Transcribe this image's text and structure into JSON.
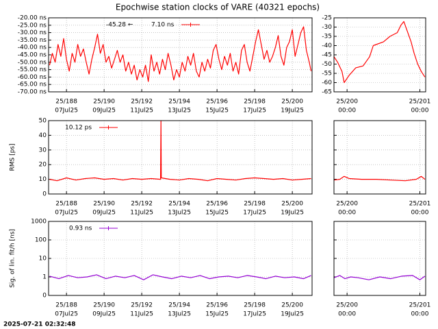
{
  "title": "Epochwise station clocks of VARE (40321 epochs)",
  "timestamp": "2025-07-21 02:32:48",
  "chart_data": [
    {
      "type": "line",
      "grid": true,
      "ytick_labels": true,
      "annotation": "-45.28 ←",
      "xlim": [
        187.05,
        201.05
      ],
      "ylim": [
        -70,
        -20
      ],
      "xticks": [
        {
          "value": 188,
          "label": "25/188"
        },
        {
          "value": 190,
          "label": "25/190"
        },
        {
          "value": 192,
          "label": "25/192"
        },
        {
          "value": 194,
          "label": "25/194"
        },
        {
          "value": 196,
          "label": "25/196"
        },
        {
          "value": 198,
          "label": "25/198"
        },
        {
          "value": 200,
          "label": "25/200"
        }
      ],
      "xtick_sublabels": [
        "07Jul25",
        "09Jul25",
        "11Jul25",
        "13Jul25",
        "15Jul25",
        "17Jul25",
        "19Jul25"
      ],
      "yticks": [
        {
          "value": -70,
          "label": "-70.00 ns"
        },
        {
          "value": -65,
          "label": "-65.00 ns"
        },
        {
          "value": -60,
          "label": "-60.00 ns"
        },
        {
          "value": -55,
          "label": "-55.00 ns"
        },
        {
          "value": -50,
          "label": "-50.00 ns"
        },
        {
          "value": -45,
          "label": "-45.00 ns"
        },
        {
          "value": -40,
          "label": "-40.00 ns"
        },
        {
          "value": -35,
          "label": "-35.00 ns"
        },
        {
          "value": -30,
          "label": "-30.00 ns"
        },
        {
          "value": -25,
          "label": "-25.00 ns"
        },
        {
          "value": -20,
          "label": "-20.00 ns"
        }
      ],
      "series": [
        {
          "name": "7.10 ns",
          "color": "#ff0000",
          "x": [
            187.1,
            187.25,
            187.4,
            187.55,
            187.7,
            187.85,
            188.0,
            188.15,
            188.3,
            188.45,
            188.6,
            188.75,
            188.9,
            189.05,
            189.2,
            189.35,
            189.5,
            189.65,
            189.8,
            189.95,
            190.1,
            190.25,
            190.4,
            190.55,
            190.7,
            190.85,
            191.0,
            191.15,
            191.3,
            191.45,
            191.6,
            191.75,
            191.9,
            192.05,
            192.2,
            192.35,
            192.5,
            192.65,
            192.8,
            192.95,
            193.1,
            193.25,
            193.4,
            193.55,
            193.7,
            193.85,
            194.0,
            194.15,
            194.3,
            194.45,
            194.6,
            194.75,
            194.9,
            195.05,
            195.2,
            195.35,
            195.5,
            195.65,
            195.8,
            195.95,
            196.1,
            196.25,
            196.4,
            196.55,
            196.7,
            196.85,
            197.0,
            197.15,
            197.3,
            197.45,
            197.6,
            197.75,
            197.9,
            198.05,
            198.2,
            198.35,
            198.5,
            198.65,
            198.8,
            198.95,
            199.1,
            199.25,
            199.4,
            199.55,
            199.7,
            199.85,
            200.0,
            200.15,
            200.3,
            200.45,
            200.6,
            200.75,
            200.9,
            201.0
          ],
          "values": [
            -52,
            -44,
            -50,
            -38,
            -46,
            -34,
            -48,
            -56,
            -44,
            -50,
            -38,
            -46,
            -41,
            -50,
            -58,
            -48,
            -40,
            -31,
            -44,
            -38,
            -50,
            -46,
            -54,
            -48,
            -42,
            -50,
            -45,
            -56,
            -50,
            -58,
            -52,
            -62,
            -55,
            -60,
            -52,
            -63,
            -45,
            -56,
            -50,
            -58,
            -48,
            -55,
            -44,
            -52,
            -62,
            -55,
            -60,
            -50,
            -56,
            -46,
            -52,
            -44,
            -56,
            -60,
            -50,
            -56,
            -48,
            -54,
            -42,
            -38,
            -48,
            -55,
            -46,
            -52,
            -44,
            -56,
            -50,
            -58,
            -42,
            -38,
            -50,
            -56,
            -46,
            -36,
            -28,
            -38,
            -48,
            -42,
            -50,
            -46,
            -40,
            -32,
            -46,
            -52,
            -40,
            -36,
            -28,
            -46,
            -38,
            -30,
            -26,
            -42,
            -50,
            -56
          ]
        }
      ]
    },
    {
      "type": "line",
      "grid": true,
      "ytick_labels": true,
      "xlim": [
        199.82,
        201.08
      ],
      "ylim": [
        -65,
        -25
      ],
      "xticks": [
        {
          "value": 200,
          "label": "25/200"
        },
        {
          "value": 201,
          "label": "25/201"
        }
      ],
      "xtick_sublabels": [
        "00:00",
        "00:00"
      ],
      "yticks": [
        -65,
        -60,
        -55,
        -50,
        -45,
        -40,
        -35,
        -30,
        -25
      ],
      "series": [
        {
          "color": "#ff0000",
          "x": [
            199.82,
            199.87,
            199.93,
            199.96,
            200.03,
            200.12,
            200.22,
            200.31,
            200.36,
            200.5,
            200.59,
            200.69,
            200.74,
            200.78,
            200.88,
            200.92,
            200.97,
            201.02,
            201.07
          ],
          "values": [
            -46,
            -49,
            -54,
            -60,
            -56,
            -52,
            -51,
            -46,
            -40,
            -38,
            -35,
            -33,
            -29,
            -27,
            -38,
            -44,
            -50,
            -54,
            -57
          ]
        }
      ]
    },
    {
      "type": "line",
      "grid": true,
      "ytick_labels": true,
      "ylabel": "RMS [ps]",
      "xlim": [
        187.05,
        201.05
      ],
      "ylim": [
        0,
        50
      ],
      "xticks": [
        {
          "value": 188,
          "label": "25/188"
        },
        {
          "value": 190,
          "label": "25/190"
        },
        {
          "value": 192,
          "label": "25/192"
        },
        {
          "value": 194,
          "label": "25/194"
        },
        {
          "value": 196,
          "label": "25/196"
        },
        {
          "value": 198,
          "label": "25/198"
        },
        {
          "value": 200,
          "label": "25/200"
        }
      ],
      "xtick_sublabels": [
        "07Jul25",
        "09Jul25",
        "11Jul25",
        "13Jul25",
        "15Jul25",
        "17Jul25",
        "19Jul25"
      ],
      "yticks": [
        0,
        10,
        20,
        30,
        40,
        50
      ],
      "series": [
        {
          "name": "10.12 ps",
          "color": "#ff0000",
          "x": [
            187.1,
            187.5,
            188.0,
            188.5,
            189.0,
            189.5,
            190.0,
            190.5,
            191.0,
            191.5,
            192.0,
            192.5,
            193.0,
            193.02,
            193.04,
            193.5,
            194.0,
            194.5,
            195.0,
            195.5,
            196.0,
            196.5,
            197.0,
            197.5,
            198.0,
            198.5,
            199.0,
            199.5,
            200.0,
            200.5,
            201.0
          ],
          "values": [
            10,
            9,
            11,
            9.5,
            10.5,
            11,
            10,
            10.5,
            9.5,
            10.5,
            10,
            10.5,
            10,
            50,
            11,
            10,
            9.5,
            10.5,
            10,
            9,
            10.5,
            10,
            9.5,
            10.5,
            11,
            10.5,
            10,
            10.5,
            9.5,
            10,
            10.5
          ]
        }
      ]
    },
    {
      "type": "line",
      "grid": true,
      "ytick_labels": false,
      "xlim": [
        199.82,
        201.08
      ],
      "ylim": [
        0,
        50
      ],
      "xticks": [
        {
          "value": 200,
          "label": "25/200"
        },
        {
          "value": 201,
          "label": "25/201"
        }
      ],
      "xtick_sublabels": [
        "00:00",
        "00:00"
      ],
      "yticks": [
        0,
        10,
        20,
        30,
        40,
        50
      ],
      "series": [
        {
          "color": "#ff0000",
          "x": [
            199.82,
            199.9,
            199.96,
            200.03,
            200.2,
            200.4,
            200.6,
            200.8,
            200.95,
            201.02,
            201.07
          ],
          "values": [
            9.5,
            10,
            12,
            10.5,
            10,
            10,
            9.5,
            9,
            10,
            12,
            10
          ]
        }
      ]
    },
    {
      "type": "line",
      "grid": true,
      "ytick_labels": true,
      "log": true,
      "ylabel": "Sig. of lin. fit/h [ns]",
      "xlim": [
        187.05,
        201.05
      ],
      "ylim": [
        0.1,
        1000
      ],
      "xticks": [
        {
          "value": 188,
          "label": "25/188"
        },
        {
          "value": 190,
          "label": "25/190"
        },
        {
          "value": 192,
          "label": "25/192"
        },
        {
          "value": 194,
          "label": "25/194"
        },
        {
          "value": 196,
          "label": "25/196"
        },
        {
          "value": 198,
          "label": "25/198"
        },
        {
          "value": 200,
          "label": "25/200"
        }
      ],
      "xtick_sublabels": [
        "07Jul25",
        "09Jul25",
        "11Jul25",
        "13Jul25",
        "15Jul25",
        "17Jul25",
        "19Jul25"
      ],
      "yticks": [
        {
          "value": 0.1,
          "label": "0"
        },
        1,
        10,
        100,
        1000
      ],
      "series": [
        {
          "name": "0.93 ns",
          "color": "#9400d3",
          "x": [
            187.1,
            187.6,
            188.1,
            188.6,
            189.1,
            189.6,
            190.1,
            190.6,
            191.1,
            191.6,
            192.1,
            192.6,
            193.1,
            193.6,
            194.1,
            194.6,
            195.1,
            195.6,
            196.1,
            196.6,
            197.1,
            197.6,
            198.1,
            198.6,
            199.1,
            199.6,
            200.1,
            200.6,
            201.0
          ],
          "values": [
            1.1,
            0.8,
            1.2,
            0.9,
            1.0,
            1.3,
            0.8,
            1.1,
            0.9,
            1.2,
            0.7,
            1.3,
            1.0,
            0.8,
            1.1,
            0.9,
            1.2,
            0.8,
            1.0,
            1.1,
            0.9,
            1.2,
            1.0,
            0.8,
            1.1,
            0.9,
            1.0,
            0.8,
            1.2
          ]
        }
      ]
    },
    {
      "type": "line",
      "grid": true,
      "ytick_labels": false,
      "log": true,
      "xlim": [
        199.82,
        201.08
      ],
      "ylim": [
        0.1,
        1000
      ],
      "xticks": [
        {
          "value": 200,
          "label": "25/200"
        },
        {
          "value": 201,
          "label": "25/201"
        }
      ],
      "xtick_sublabels": [
        "00:00",
        "00:00"
      ],
      "yticks": [
        0.1,
        1,
        10,
        100,
        1000
      ],
      "series": [
        {
          "color": "#9400d3",
          "x": [
            199.82,
            199.9,
            199.97,
            200.05,
            200.15,
            200.3,
            200.45,
            200.6,
            200.75,
            200.9,
            201.0,
            201.07
          ],
          "values": [
            0.9,
            1.2,
            0.8,
            1.0,
            0.9,
            0.7,
            1.0,
            0.8,
            1.1,
            1.2,
            0.7,
            1.1
          ]
        }
      ]
    }
  ]
}
